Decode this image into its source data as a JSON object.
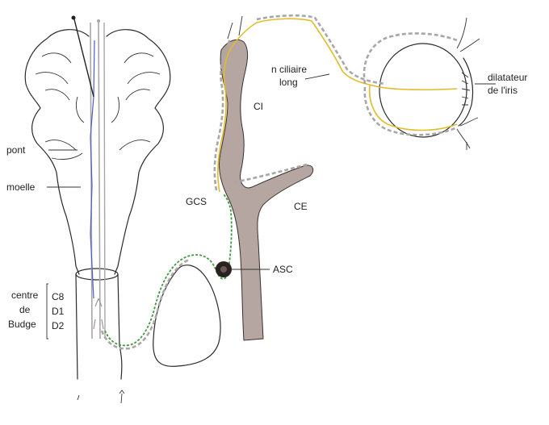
{
  "labels": {
    "pont": "pont",
    "moelle": "moelle",
    "centre_line1": "centre",
    "centre_line2": "de",
    "centre_line3": "Budge",
    "c8": "C8",
    "d1": "D1",
    "d2": "D2",
    "gcs": "GCS",
    "ci": "CI",
    "ce": "CE",
    "asc": "ASC",
    "nerf_line1": "n  ciliaire",
    "nerf_line2": "long",
    "dilatateur_line1": "dilatateur",
    "dilatateur_line2": "de l'iris"
  },
  "colors": {
    "pathway_gray": "#a9a6a6",
    "pathway_yellow": "#e2bb2a",
    "pathway_green": "#3f9a3f",
    "pathway_blue": "#4a5fc4",
    "artery_fill": "#b5a6a1",
    "ganglion_fill": "#2a2220"
  }
}
